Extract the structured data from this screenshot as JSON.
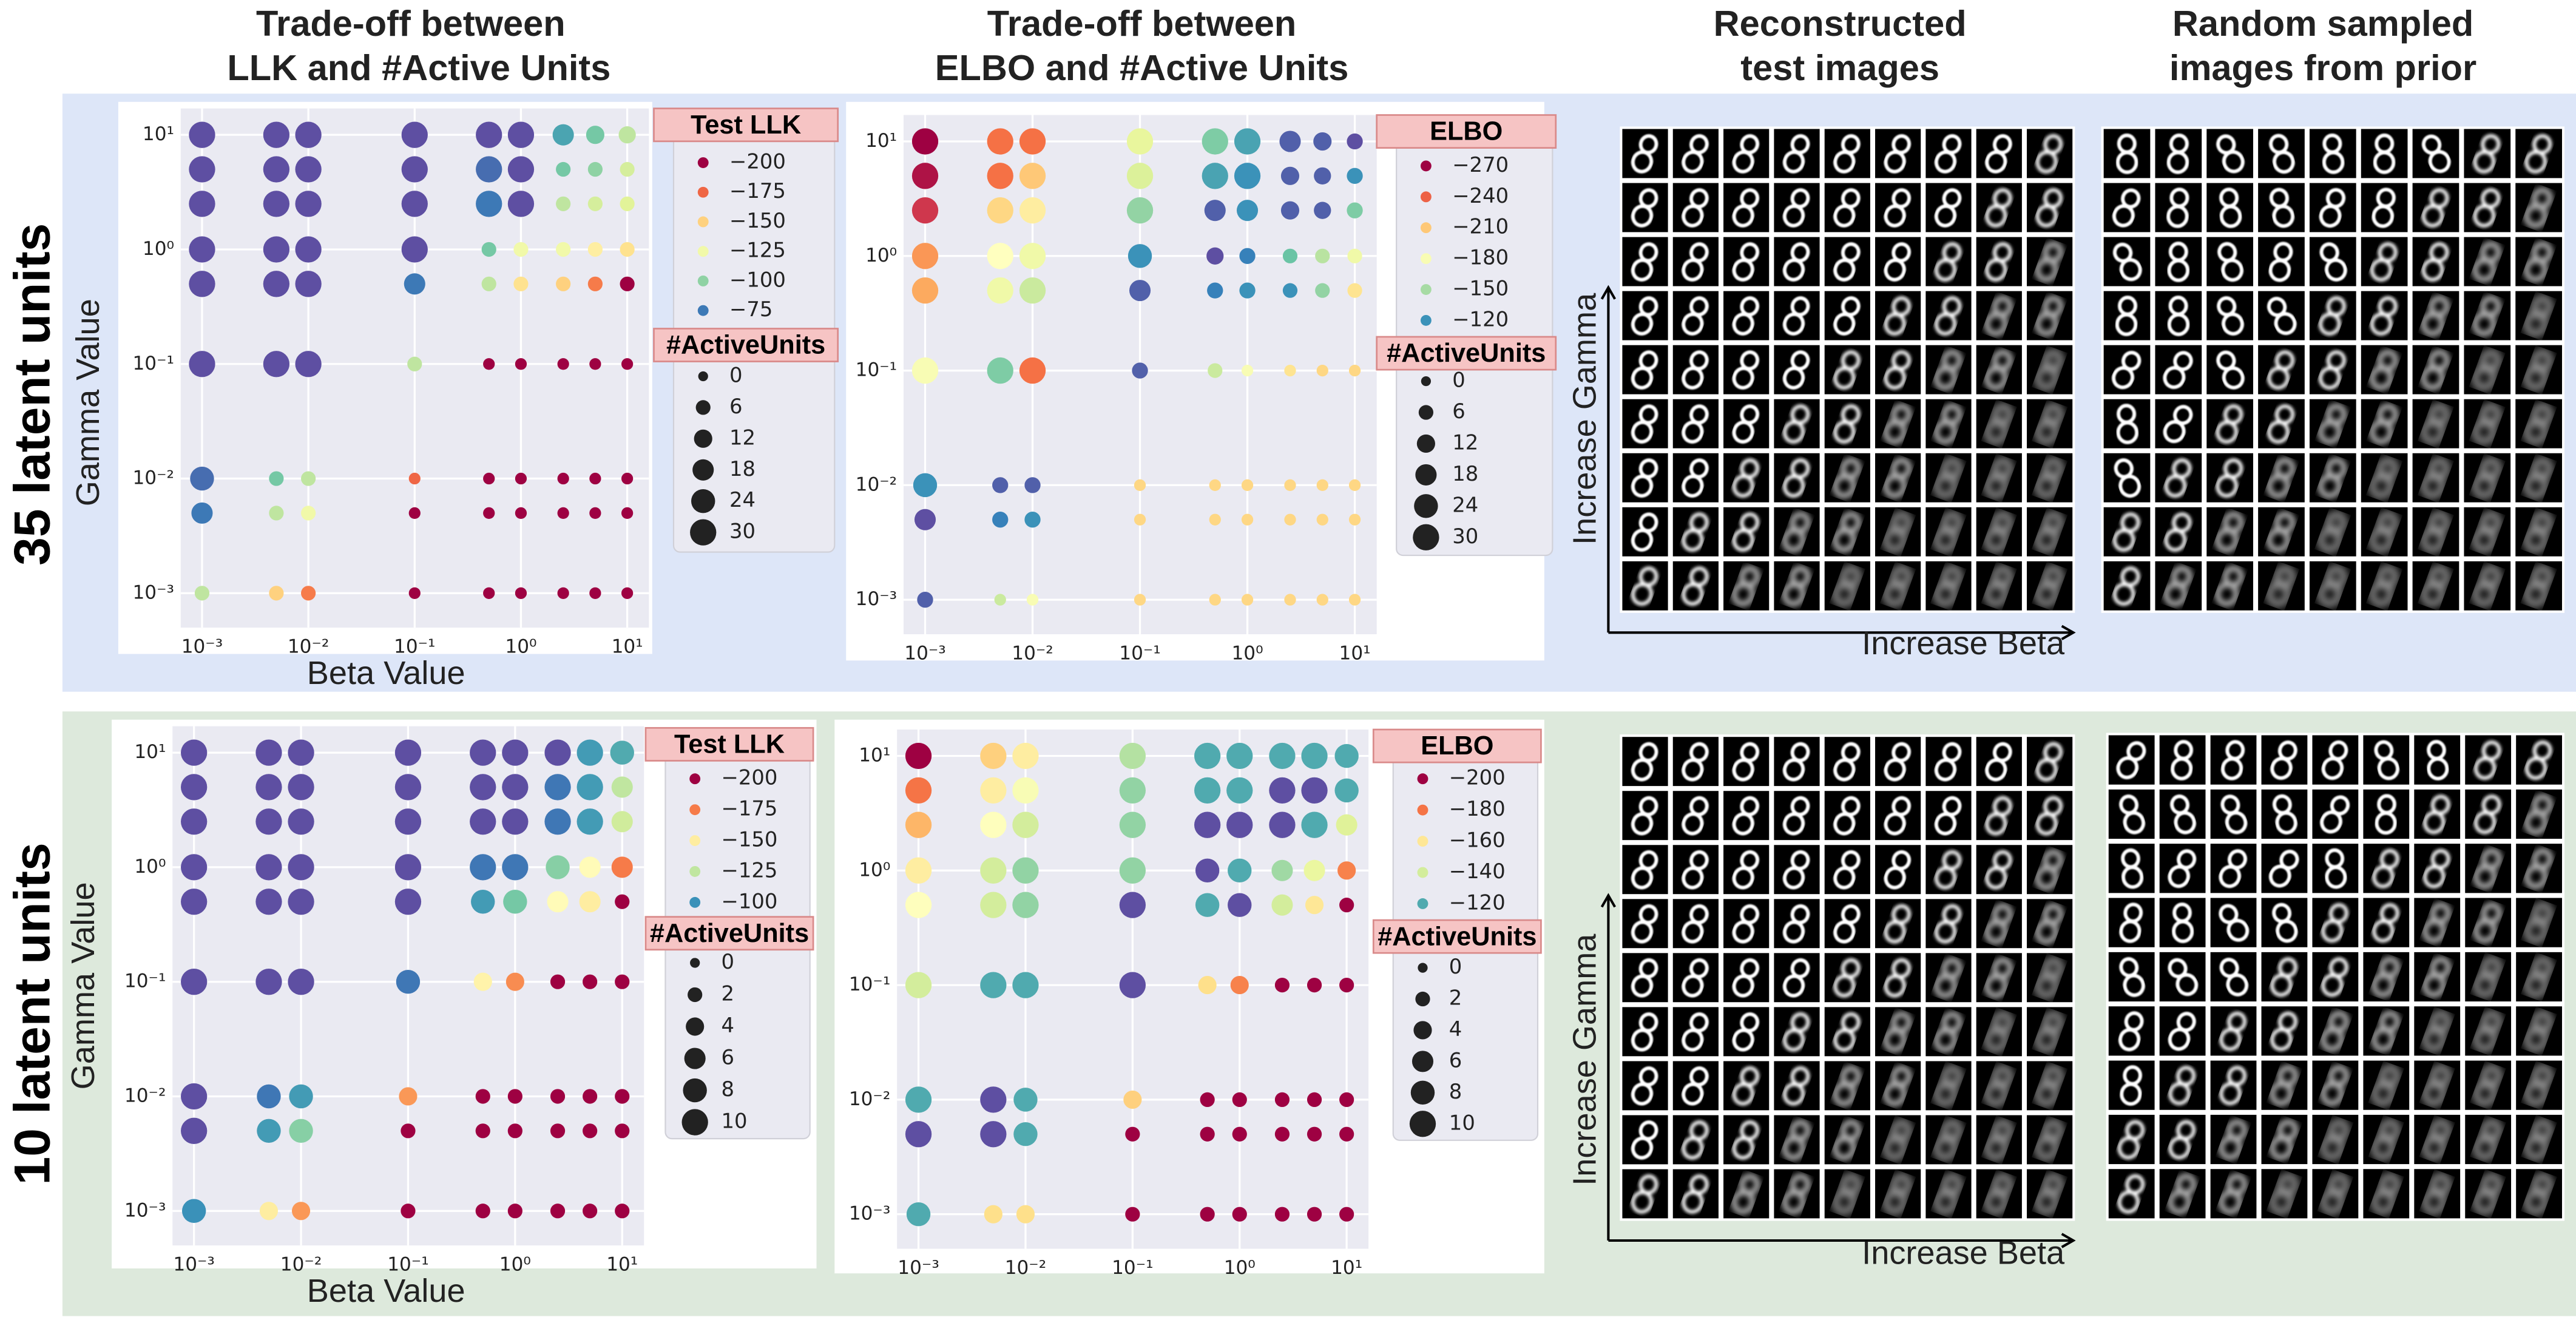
{
  "column_titles": [
    [
      "Trade-off between",
      "LLK and #Active Units"
    ],
    [
      "Trade-off between",
      "ELBO and #Active Units"
    ],
    [
      "Reconstructed",
      "test images"
    ],
    [
      "Random sampled",
      "images from prior"
    ]
  ],
  "row_labels": [
    "35 latent units",
    "10 latent units"
  ],
  "image_axes": [
    {
      "y_label": "Increase Gamma",
      "x_label": "Increase Beta"
    },
    {
      "y_label": "Increase Gamma",
      "x_label": "Increase Beta"
    }
  ],
  "colormap": [
    "#9e0142",
    "#d53e4f",
    "#f46d43",
    "#fdae61",
    "#fee08b",
    "#ffffbf",
    "#e6f598",
    "#abdda4",
    "#66c2a5",
    "#3288bd",
    "#5e4fa2"
  ],
  "chart_data": [
    {
      "type": "scatter",
      "xlabel": "Beta Value",
      "ylabel": "Gamma Value",
      "xscale": "log",
      "yscale": "log",
      "grid": true,
      "x": [
        0.001,
        0.005,
        0.01,
        0.1,
        0.5,
        1,
        2.5,
        5,
        10
      ],
      "y": [
        10,
        5,
        2.5,
        1,
        0.5,
        0.1,
        0.01,
        0.005,
        0.001
      ],
      "xlim": [
        0.00063,
        16
      ],
      "ylim": [
        0.0005,
        17
      ],
      "xticks": [
        {
          "value": 0.001,
          "label": "10⁻³"
        },
        {
          "value": 0.01,
          "label": "10⁻²"
        },
        {
          "value": 0.1,
          "label": "10⁻¹"
        },
        {
          "value": 1,
          "label": "10⁰"
        },
        {
          "value": 10,
          "label": "10¹"
        }
      ],
      "yticks": [
        {
          "value": 0.001,
          "label": "10⁻³"
        },
        {
          "value": 0.01,
          "label": "10⁻²"
        },
        {
          "value": 0.1,
          "label": "10⁻¹"
        },
        {
          "value": 1,
          "label": "10⁰"
        },
        {
          "value": 10,
          "label": "10¹"
        }
      ],
      "clim": [
        -200,
        -65
      ],
      "color_values": [
        [
          -60,
          -60,
          -60,
          -60,
          -60,
          -60,
          -85,
          -95,
          -110
        ],
        [
          -60,
          -60,
          -60,
          -60,
          -72,
          -60,
          -95,
          -100,
          -115
        ],
        [
          -60,
          -60,
          -60,
          -60,
          -75,
          -65,
          -110,
          -115,
          -118
        ],
        [
          -60,
          -60,
          -60,
          -62,
          -95,
          -125,
          -125,
          -140,
          -145
        ],
        [
          -60,
          -60,
          -60,
          -75,
          -110,
          -145,
          -150,
          -170,
          -200
        ],
        [
          -60,
          -60,
          -60,
          -110,
          -205,
          -205,
          -205,
          -205,
          -205
        ],
        [
          -72,
          -95,
          -110,
          -175,
          -210,
          -210,
          -210,
          -210,
          -210
        ],
        [
          -75,
          -110,
          -125,
          -200,
          -210,
          -210,
          -210,
          -210,
          -210
        ],
        [
          -110,
          -150,
          -170,
          -200,
          -215,
          -215,
          -215,
          -215,
          -215
        ]
      ],
      "sizes": [
        [
          30,
          30,
          30,
          30,
          30,
          30,
          18,
          12,
          10
        ],
        [
          30,
          30,
          30,
          30,
          30,
          30,
          6,
          6,
          6
        ],
        [
          30,
          30,
          30,
          30,
          30,
          30,
          6,
          6,
          6
        ],
        [
          30,
          30,
          30,
          30,
          6,
          6,
          6,
          6,
          6
        ],
        [
          30,
          30,
          30,
          18,
          6,
          6,
          6,
          6,
          6
        ],
        [
          30,
          30,
          30,
          6,
          2,
          2,
          2,
          2,
          2
        ],
        [
          24,
          6,
          6,
          2,
          2,
          2,
          2,
          2,
          2
        ],
        [
          18,
          6,
          6,
          2,
          2,
          2,
          2,
          2,
          2
        ],
        [
          6,
          6,
          6,
          2,
          2,
          2,
          2,
          2,
          2
        ]
      ],
      "legend": {
        "color_title": "Test LLK",
        "color_values": [
          {
            "value": -200,
            "label": "−200"
          },
          {
            "value": -175,
            "label": "−175"
          },
          {
            "value": -150,
            "label": "−150"
          },
          {
            "value": -125,
            "label": "−125"
          },
          {
            "value": -100,
            "label": "−100"
          },
          {
            "value": -75,
            "label": "−75"
          }
        ],
        "size_title": "#ActiveUnits",
        "size_values": [
          0,
          6,
          12,
          18,
          24,
          30
        ]
      }
    },
    {
      "type": "scatter",
      "xscale": "log",
      "yscale": "log",
      "grid": true,
      "x": [
        0.001,
        0.005,
        0.01,
        0.1,
        0.5,
        1,
        2.5,
        5,
        10
      ],
      "y": [
        10,
        5,
        2.5,
        1,
        0.5,
        0.1,
        0.01,
        0.005,
        0.001
      ],
      "xlim": [
        0.00063,
        16
      ],
      "ylim": [
        0.0005,
        17
      ],
      "xticks": [
        {
          "value": 0.001,
          "label": "10⁻³"
        },
        {
          "value": 0.01,
          "label": "10⁻²"
        },
        {
          "value": 0.1,
          "label": "10⁻¹"
        },
        {
          "value": 1,
          "label": "10⁰"
        },
        {
          "value": 10,
          "label": "10¹"
        }
      ],
      "yticks": [
        {
          "value": 0.001,
          "label": "10⁻³"
        },
        {
          "value": 0.01,
          "label": "10⁻²"
        },
        {
          "value": 0.1,
          "label": "10⁻¹"
        },
        {
          "value": 1,
          "label": "10⁰"
        },
        {
          "value": 10,
          "label": "10¹"
        }
      ],
      "clim": [
        -270,
        -100
      ],
      "color_values": [
        [
          -270,
          -235,
          -235,
          -170,
          -140,
          -125,
          -105,
          -105,
          -100
        ],
        [
          -265,
          -235,
          -210,
          -165,
          -125,
          -120,
          -105,
          -105,
          -120
        ],
        [
          -255,
          -205,
          -195,
          -145,
          -105,
          -120,
          -105,
          -105,
          -140
        ],
        [
          -225,
          -185,
          -175,
          -120,
          -100,
          -115,
          -135,
          -155,
          -175
        ],
        [
          -220,
          -175,
          -160,
          -105,
          -115,
          -120,
          -120,
          -145,
          -200
        ],
        [
          -180,
          -140,
          -235,
          -105,
          -160,
          -180,
          -200,
          -205,
          -205
        ],
        [
          -120,
          -105,
          -105,
          -205,
          -205,
          -205,
          -205,
          -205,
          -205
        ],
        [
          -100,
          -115,
          -120,
          -205,
          -205,
          -205,
          -205,
          -205,
          -205
        ],
        [
          -105,
          -160,
          -180,
          -205,
          -205,
          -205,
          -205,
          -205,
          -205
        ]
      ],
      "sizes": [
        [
          30,
          30,
          30,
          30,
          30,
          30,
          18,
          12,
          8
        ],
        [
          30,
          30,
          30,
          30,
          30,
          30,
          12,
          10,
          8
        ],
        [
          30,
          30,
          30,
          30,
          18,
          18,
          12,
          10,
          8
        ],
        [
          30,
          30,
          30,
          24,
          10,
          8,
          6,
          6,
          6
        ],
        [
          30,
          30,
          30,
          18,
          8,
          8,
          6,
          6,
          6
        ],
        [
          30,
          30,
          30,
          8,
          6,
          2,
          2,
          2,
          2
        ],
        [
          24,
          8,
          8,
          2,
          2,
          2,
          2,
          2,
          2
        ],
        [
          18,
          8,
          8,
          2,
          2,
          2,
          2,
          2,
          2
        ],
        [
          8,
          2,
          2,
          2,
          2,
          2,
          2,
          2,
          2
        ]
      ],
      "legend": {
        "color_title": "ELBO",
        "color_values": [
          {
            "value": -270,
            "label": "−270"
          },
          {
            "value": -240,
            "label": "−240"
          },
          {
            "value": -210,
            "label": "−210"
          },
          {
            "value": -180,
            "label": "−180"
          },
          {
            "value": -150,
            "label": "−150"
          },
          {
            "value": -120,
            "label": "−120"
          }
        ],
        "size_title": "#ActiveUnits",
        "size_values": [
          0,
          6,
          12,
          18,
          24,
          30
        ]
      }
    },
    {
      "type": "scatter",
      "xlabel": "Beta Value",
      "ylabel": "Gamma Value",
      "xscale": "log",
      "yscale": "log",
      "grid": true,
      "x": [
        0.001,
        0.005,
        0.01,
        0.1,
        0.5,
        1,
        2.5,
        5,
        10
      ],
      "y": [
        10,
        5,
        2.5,
        1,
        0.5,
        0.1,
        0.01,
        0.005,
        0.001
      ],
      "xlim": [
        0.00063,
        16
      ],
      "ylim": [
        0.0005,
        17
      ],
      "xticks": [
        {
          "value": 0.001,
          "label": "10⁻³"
        },
        {
          "value": 0.01,
          "label": "10⁻²"
        },
        {
          "value": 0.1,
          "label": "10⁻¹"
        },
        {
          "value": 1,
          "label": "10⁰"
        },
        {
          "value": 10,
          "label": "10¹"
        }
      ],
      "yticks": [
        {
          "value": 0.001,
          "label": "10⁻³"
        },
        {
          "value": 0.01,
          "label": "10⁻²"
        },
        {
          "value": 0.1,
          "label": "10⁻¹"
        },
        {
          "value": 1,
          "label": "10⁰"
        },
        {
          "value": 10,
          "label": "10¹"
        }
      ],
      "clim": [
        -200,
        -87
      ],
      "color_values": [
        [
          -85,
          -85,
          -85,
          -85,
          -85,
          -85,
          -85,
          -102,
          -105
        ],
        [
          -85,
          -85,
          -85,
          -85,
          -85,
          -85,
          -95,
          -102,
          -125
        ],
        [
          -85,
          -85,
          -85,
          -85,
          -85,
          -85,
          -95,
          -102,
          -128
        ],
        [
          -85,
          -85,
          -85,
          -85,
          -95,
          -95,
          -115,
          -145,
          -175
        ],
        [
          -85,
          -85,
          -85,
          -85,
          -102,
          -112,
          -145,
          -150,
          -200
        ],
        [
          -85,
          -85,
          -85,
          -95,
          -148,
          -172,
          -205,
          -205,
          -205
        ],
        [
          -85,
          -95,
          -102,
          -170,
          -205,
          -205,
          -205,
          -205,
          -205
        ],
        [
          -85,
          -102,
          -115,
          -205,
          -205,
          -205,
          -205,
          -205,
          -205
        ],
        [
          -100,
          -150,
          -170,
          -205,
          -205,
          -205,
          -205,
          -205,
          -205
        ]
      ],
      "sizes": [
        [
          10,
          10,
          10,
          10,
          10,
          10,
          10,
          10,
          8
        ],
        [
          10,
          10,
          10,
          10,
          10,
          10,
          10,
          10,
          6
        ],
        [
          10,
          10,
          10,
          10,
          10,
          10,
          10,
          10,
          6
        ],
        [
          10,
          10,
          10,
          10,
          10,
          10,
          8,
          6,
          6
        ],
        [
          10,
          10,
          10,
          10,
          8,
          8,
          6,
          6,
          2
        ],
        [
          10,
          10,
          10,
          8,
          4,
          4,
          2,
          2,
          2
        ],
        [
          10,
          8,
          8,
          4,
          2,
          2,
          2,
          2,
          2
        ],
        [
          10,
          8,
          8,
          2,
          2,
          2,
          2,
          2,
          2
        ],
        [
          8,
          4,
          4,
          2,
          2,
          2,
          2,
          2,
          2
        ]
      ],
      "legend": {
        "color_title": "Test LLK",
        "color_values": [
          {
            "value": -200,
            "label": "−200"
          },
          {
            "value": -175,
            "label": "−175"
          },
          {
            "value": -150,
            "label": "−150"
          },
          {
            "value": -125,
            "label": "−125"
          },
          {
            "value": -100,
            "label": "−100"
          }
        ],
        "size_title": "#ActiveUnits",
        "size_values": [
          0,
          2,
          4,
          6,
          8,
          10
        ]
      }
    },
    {
      "type": "scatter",
      "xscale": "log",
      "yscale": "log",
      "grid": true,
      "x": [
        0.001,
        0.005,
        0.01,
        0.1,
        0.5,
        1,
        2.5,
        5,
        10
      ],
      "y": [
        10,
        5,
        2.5,
        1,
        0.5,
        0.1,
        0.01,
        0.005,
        0.001
      ],
      "xlim": [
        0.00063,
        16
      ],
      "ylim": [
        0.0005,
        17
      ],
      "xticks": [
        {
          "value": 0.001,
          "label": "10⁻³"
        },
        {
          "value": 0.01,
          "label": "10⁻²"
        },
        {
          "value": 0.1,
          "label": "10⁻¹"
        },
        {
          "value": 1,
          "label": "10⁰"
        },
        {
          "value": 10,
          "label": "10¹"
        }
      ],
      "yticks": [
        {
          "value": 0.001,
          "label": "10⁻³"
        },
        {
          "value": 0.01,
          "label": "10⁻²"
        },
        {
          "value": 0.1,
          "label": "10⁻¹"
        },
        {
          "value": 1,
          "label": "10⁰"
        },
        {
          "value": 10,
          "label": "10¹"
        }
      ],
      "clim": [
        -200,
        -105
      ],
      "color_values": [
        [
          -200,
          -165,
          -158,
          -135,
          -120,
          -120,
          -120,
          -120,
          -120
        ],
        [
          -180,
          -158,
          -150,
          -130,
          -120,
          -120,
          -105,
          -105,
          -120
        ],
        [
          -170,
          -152,
          -140,
          -130,
          -105,
          -105,
          -105,
          -120,
          -142
        ],
        [
          -158,
          -140,
          -130,
          -130,
          -105,
          -120,
          -132,
          -145,
          -178
        ],
        [
          -152,
          -140,
          -130,
          -105,
          -120,
          -105,
          -140,
          -160,
          -200
        ],
        [
          -140,
          -120,
          -120,
          -105,
          -162,
          -178,
          -200,
          -200,
          -200
        ],
        [
          -120,
          -105,
          -120,
          -165,
          -200,
          -200,
          -200,
          -200,
          -200
        ],
        [
          -105,
          -105,
          -120,
          -200,
          -200,
          -200,
          -200,
          -200,
          -200
        ],
        [
          -120,
          -162,
          -162,
          -200,
          -200,
          -200,
          -200,
          -200,
          -200
        ]
      ],
      "sizes": [
        [
          10,
          10,
          10,
          10,
          10,
          10,
          10,
          10,
          8
        ],
        [
          10,
          10,
          10,
          10,
          10,
          10,
          10,
          10,
          8
        ],
        [
          10,
          10,
          10,
          10,
          10,
          10,
          10,
          10,
          6
        ],
        [
          10,
          10,
          10,
          10,
          8,
          8,
          6,
          6,
          4
        ],
        [
          10,
          10,
          10,
          10,
          8,
          8,
          6,
          4,
          2
        ],
        [
          10,
          10,
          10,
          10,
          4,
          4,
          2,
          2,
          2
        ],
        [
          10,
          10,
          8,
          4,
          2,
          2,
          2,
          2,
          2
        ],
        [
          10,
          10,
          8,
          2,
          2,
          2,
          2,
          2,
          2
        ],
        [
          8,
          4,
          4,
          2,
          2,
          2,
          2,
          2,
          2
        ]
      ],
      "legend": {
        "color_title": "ELBO",
        "color_values": [
          {
            "value": -200,
            "label": "−200"
          },
          {
            "value": -180,
            "label": "−180"
          },
          {
            "value": -160,
            "label": "−160"
          },
          {
            "value": -140,
            "label": "−140"
          },
          {
            "value": -120,
            "label": "−120"
          }
        ],
        "size_title": "#ActiveUnits",
        "size_values": [
          0,
          2,
          4,
          6,
          8,
          10
        ]
      }
    }
  ]
}
